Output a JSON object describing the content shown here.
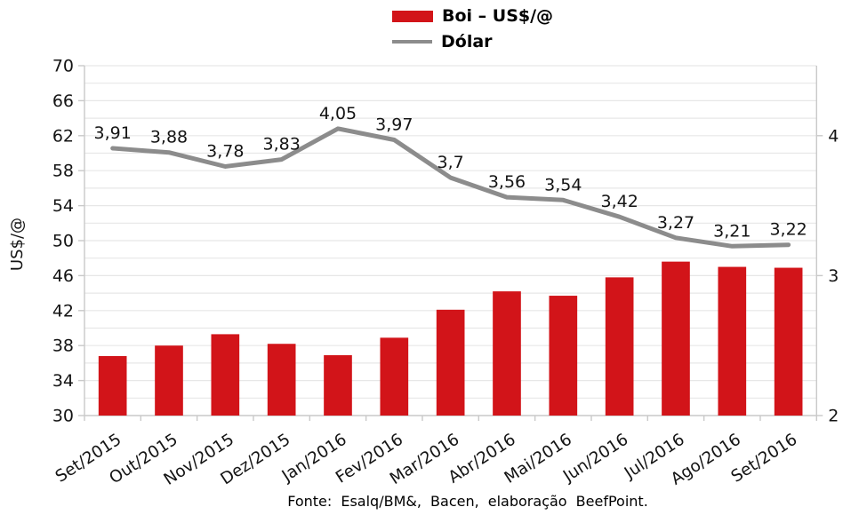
{
  "legend": {
    "boi": "Boi – US$/@",
    "dolar": "Dólar"
  },
  "footer": "Fonte: Esalq/BM&, Bacen, elaboração BeefPoint.",
  "colors": {
    "bar": "#d21419",
    "line": "#8c8c8c",
    "grid": "#e7e7e7",
    "axis": "#c9c9c9",
    "text": "#141414"
  },
  "chart_data": {
    "type": "bar+line combo",
    "categories": [
      "Set/2015",
      "Out/2015",
      "Nov/2015",
      "Dez/2015",
      "Jan/2016",
      "Fev/2016",
      "Mar/2016",
      "Abr/2016",
      "Mai/2016",
      "Jun/2016",
      "Jul/2016",
      "Ago/2016",
      "Set/2016"
    ],
    "series": [
      {
        "name": "Boi – US$/@",
        "type": "bar",
        "axis": "left",
        "values": [
          36.8,
          38.0,
          39.3,
          38.2,
          36.9,
          38.9,
          42.1,
          44.2,
          43.7,
          45.8,
          47.6,
          47.0,
          46.9
        ]
      },
      {
        "name": "Dólar",
        "type": "line",
        "axis": "right",
        "values": [
          3.91,
          3.88,
          3.78,
          3.83,
          4.05,
          3.97,
          3.7,
          3.56,
          3.54,
          3.42,
          3.27,
          3.21,
          3.22
        ],
        "labels": [
          "3,91",
          "3,88",
          "3,78",
          "3,83",
          "4,05",
          "3,97",
          "3,7",
          "3,56",
          "3,54",
          "3,42",
          "3,27",
          "3,21",
          "3,22"
        ]
      }
    ],
    "left_axis": {
      "title": "US$/@",
      "min": 30,
      "max": 70,
      "tick_step": 4,
      "minor_step": 2
    },
    "right_axis": {
      "min": 2,
      "max": 4.5,
      "ticks": [
        2,
        3,
        4
      ]
    },
    "grid": true,
    "legend_position": "top-center"
  }
}
